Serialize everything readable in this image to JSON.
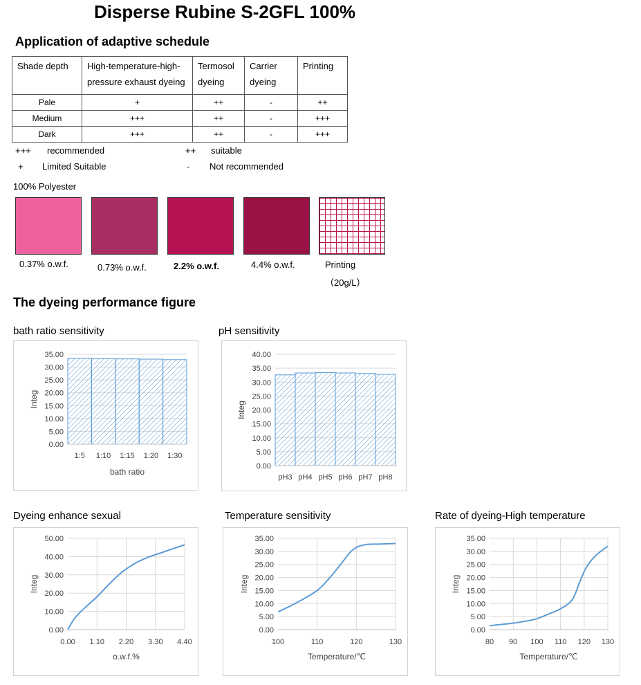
{
  "title": "Disperse Rubine S-2GFL 100%",
  "schedule": {
    "heading": "Application of adaptive schedule",
    "headers": [
      [
        "Shade depth"
      ],
      [
        "High-temperature-high-",
        "pressure exhaust dyeing"
      ],
      [
        "Termosol",
        "dyeing"
      ],
      [
        "Carrier",
        "dyeing"
      ],
      [
        "Printing"
      ]
    ],
    "rows": [
      [
        "Pale",
        "+",
        "++",
        "-",
        "++"
      ],
      [
        "Medium",
        "+++",
        "++",
        "-",
        "+++"
      ],
      [
        "Dark",
        "+++",
        "++",
        "-",
        "+++"
      ]
    ],
    "legend": {
      "l1_sym": "+++",
      "l1_text": "recommended",
      "l2_sym": "++",
      "l2_text": "suitable",
      "l3_sym": "+",
      "l3_text": "Limited Suitable",
      "l4_sym": "-",
      "l4_text": "Not recommended"
    }
  },
  "swatches": {
    "substrate": "100% Polyester",
    "items": [
      {
        "label": "0.37% o.w.f.",
        "color": "#ee609e"
      },
      {
        "label": "0.73% o.w.f.",
        "color": "#a82d63"
      },
      {
        "label": "2.2% o.w.f.",
        "color": "#b41253"
      },
      {
        "label": "4.4% o.w.f.",
        "color": "#981246"
      },
      {
        "label": "Printing",
        "label2": "（20g/L）",
        "color": "#b8104a"
      }
    ]
  },
  "performance_heading": "The dyeing performance figure",
  "chart_data": [
    {
      "id": "bath",
      "type": "bar",
      "title": "bath ratio sensitivity",
      "categories": [
        "1:5",
        "1:10",
        "1:15",
        "1:20",
        "1:30"
      ],
      "values": [
        33.4,
        33.3,
        33.2,
        33.1,
        32.9
      ],
      "ylim": [
        0,
        35
      ],
      "yticks": [
        0,
        5,
        10,
        15,
        20,
        25,
        30,
        35
      ],
      "ytick_labels": [
        "0.00",
        "5.00",
        "10.00",
        "15.00",
        "20.00",
        "25.00",
        "30.00",
        "35.00"
      ],
      "xlabel": "bath ratio",
      "ylabel": "Integ",
      "grid": true
    },
    {
      "id": "ph",
      "type": "bar",
      "title": "pH sensitivity",
      "categories": [
        "pH3",
        "pH4",
        "pH5",
        "pH6",
        "pH7",
        "pH8"
      ],
      "values": [
        32.6,
        33.3,
        33.4,
        33.3,
        33.1,
        32.8
      ],
      "ylim": [
        0,
        40
      ],
      "yticks": [
        0,
        5,
        10,
        15,
        20,
        25,
        30,
        35,
        40
      ],
      "ytick_labels": [
        "0.00",
        "5.00",
        "10.00",
        "15.00",
        "20.00",
        "25.00",
        "30.00",
        "35.00",
        "40.00"
      ],
      "xlabel": "",
      "ylabel": "Integ",
      "grid": true
    },
    {
      "id": "enhance",
      "type": "line",
      "title": "Dyeing enhance sexual",
      "x": [
        0,
        0.1,
        0.25,
        0.5,
        0.8,
        1.1,
        1.5,
        2.0,
        2.5,
        3.0,
        3.5,
        4.0,
        4.4
      ],
      "y": [
        0,
        2.5,
        6,
        10,
        14,
        18,
        24,
        31,
        36,
        39.5,
        42,
        44.5,
        46.5
      ],
      "xlim": [
        0,
        4.4
      ],
      "xticks": [
        0,
        1.1,
        2.2,
        3.3,
        4.4
      ],
      "xtick_labels": [
        "0.00",
        "1.10",
        "2.20",
        "3.30",
        "4.40"
      ],
      "ylim": [
        0,
        50
      ],
      "yticks": [
        0,
        10,
        20,
        30,
        40,
        50
      ],
      "ytick_labels": [
        "0.00",
        "10.00",
        "20.00",
        "30.00",
        "40.00",
        "50.00"
      ],
      "xlabel": "o.w.f.%",
      "ylabel": "Integ",
      "grid": true
    },
    {
      "id": "temp",
      "type": "line",
      "title": "Temperature sensitivity",
      "x": [
        100,
        105,
        110,
        113,
        116,
        119,
        122,
        126,
        130
      ],
      "y": [
        6.8,
        10.5,
        15,
        19.5,
        25,
        30.5,
        32.5,
        32.8,
        33
      ],
      "xlim": [
        100,
        130
      ],
      "xticks": [
        100,
        110,
        120,
        130
      ],
      "xtick_labels": [
        "100",
        "110",
        "120",
        "130"
      ],
      "ylim": [
        0,
        35
      ],
      "yticks": [
        0,
        5,
        10,
        15,
        20,
        25,
        30,
        35
      ],
      "ytick_labels": [
        "0.00",
        "5.00",
        "10.00",
        "15.00",
        "20.00",
        "25.00",
        "30.00",
        "35.00"
      ],
      "xlabel": "Temperature/℃",
      "ylabel": "Integ",
      "grid": true
    },
    {
      "id": "rate",
      "type": "line",
      "title": "Rate of dyeing-High temperature",
      "x": [
        80,
        85,
        90,
        95,
        100,
        105,
        110,
        115,
        118,
        121,
        125,
        130
      ],
      "y": [
        1.5,
        2,
        2.5,
        3.2,
        4.2,
        6,
        8,
        11.5,
        18,
        24,
        28.5,
        32
      ],
      "xlim": [
        80,
        130
      ],
      "xticks": [
        80,
        90,
        100,
        110,
        120,
        130
      ],
      "xtick_labels": [
        "80",
        "90",
        "100",
        "110",
        "120",
        "130"
      ],
      "ylim": [
        0,
        35
      ],
      "yticks": [
        0,
        5,
        10,
        15,
        20,
        25,
        30,
        35
      ],
      "ytick_labels": [
        "0.00",
        "5.00",
        "10.00",
        "15.00",
        "20.00",
        "25.00",
        "30.00",
        "35.00"
      ],
      "xlabel": "Temperature/℃",
      "ylabel": "Integ",
      "grid": true
    }
  ],
  "colors": {
    "series": "#5b9bd5",
    "grid": "#d9d9d9",
    "text": "#404040"
  }
}
